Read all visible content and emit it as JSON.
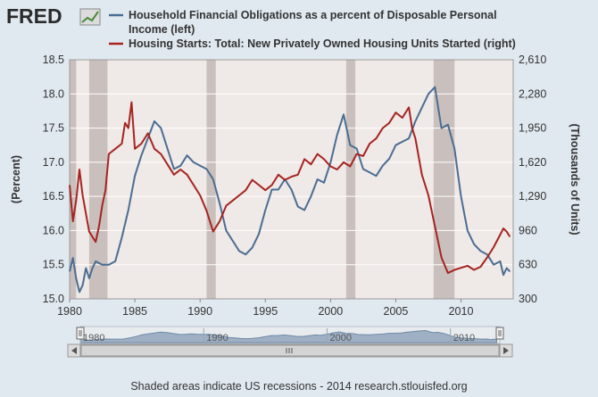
{
  "header": {
    "brand": "FRED",
    "logo_icon": "fred-chart-icon"
  },
  "colors": {
    "page_bg": "#e1e9f0",
    "plot_bg": "#efe9e7",
    "recession": "#c9bfbc",
    "series_left": "#4a6d93",
    "series_right": "#a52420",
    "axis_text": "#333333"
  },
  "chart_data": {
    "type": "line",
    "title": "",
    "xlabel": "",
    "left_axis": {
      "label": "(Percent)",
      "range": [
        15.0,
        18.5
      ],
      "ticks": [
        15.0,
        15.5,
        16.0,
        16.5,
        17.0,
        17.5,
        18.0,
        18.5
      ],
      "tick_labels": [
        "15.0",
        "15.5",
        "16.0",
        "16.5",
        "17.0",
        "17.5",
        "18.0",
        "18.5"
      ]
    },
    "right_axis": {
      "label": "(Thousands of Units)",
      "range": [
        300,
        2610
      ],
      "ticks": [
        300,
        630,
        960,
        1290,
        1620,
        1950,
        2280,
        2610
      ],
      "tick_labels": [
        "300",
        "630",
        "960",
        "1,290",
        "1,620",
        "1,950",
        "2,280",
        "2,610"
      ]
    },
    "x_axis": {
      "range": [
        1980.0,
        2014.0
      ],
      "ticks": [
        1980,
        1985,
        1990,
        1995,
        2000,
        2005,
        2010
      ],
      "tick_labels": [
        "1980",
        "1985",
        "1990",
        "1995",
        "2000",
        "2005",
        "2010"
      ]
    },
    "recessions": [
      [
        1980.0,
        1980.5
      ],
      [
        1981.5,
        1982.9
      ],
      [
        1990.5,
        1991.2
      ],
      [
        2001.2,
        2001.9
      ],
      [
        2007.9,
        2009.5
      ]
    ],
    "series": [
      {
        "name": "Household Financial Obligations as a percent of Disposable Personal Income (left)",
        "axis": "left",
        "x": [
          1980.0,
          1980.25,
          1980.5,
          1980.75,
          1981.0,
          1981.25,
          1981.5,
          1981.75,
          1982.0,
          1982.5,
          1983.0,
          1983.5,
          1984.0,
          1984.5,
          1985.0,
          1985.5,
          1986.0,
          1986.5,
          1987.0,
          1987.5,
          1988.0,
          1988.5,
          1989.0,
          1989.5,
          1990.0,
          1990.5,
          1991.0,
          1991.5,
          1992.0,
          1992.5,
          1993.0,
          1993.5,
          1994.0,
          1994.5,
          1995.0,
          1995.5,
          1996.0,
          1996.5,
          1997.0,
          1997.5,
          1998.0,
          1998.5,
          1999.0,
          1999.5,
          2000.0,
          2000.5,
          2001.0,
          2001.5,
          2002.0,
          2002.5,
          2003.0,
          2003.5,
          2004.0,
          2004.5,
          2005.0,
          2005.5,
          2006.0,
          2006.5,
          2007.0,
          2007.5,
          2008.0,
          2008.5,
          2009.0,
          2009.5,
          2010.0,
          2010.5,
          2011.0,
          2011.5,
          2012.0,
          2012.5,
          2013.0,
          2013.25,
          2013.5,
          2013.75
        ],
        "values": [
          15.4,
          15.6,
          15.3,
          15.1,
          15.2,
          15.45,
          15.3,
          15.45,
          15.55,
          15.5,
          15.5,
          15.55,
          15.9,
          16.3,
          16.8,
          17.1,
          17.35,
          17.6,
          17.5,
          17.2,
          16.9,
          16.95,
          17.1,
          17.0,
          16.95,
          16.9,
          16.75,
          16.4,
          16.0,
          15.85,
          15.7,
          15.65,
          15.75,
          15.95,
          16.3,
          16.6,
          16.6,
          16.75,
          16.6,
          16.35,
          16.3,
          16.5,
          16.75,
          16.7,
          17.0,
          17.4,
          17.7,
          17.25,
          17.2,
          16.9,
          16.85,
          16.8,
          16.95,
          17.05,
          17.25,
          17.3,
          17.35,
          17.6,
          17.8,
          18.0,
          18.1,
          17.5,
          17.55,
          17.2,
          16.5,
          16.0,
          15.8,
          15.7,
          15.65,
          15.5,
          15.55,
          15.35,
          15.45,
          15.4
        ]
      },
      {
        "name": "Housing Starts: Total: New Privately Owned Housing Units Started (right)",
        "axis": "right",
        "x": [
          1980.0,
          1980.25,
          1980.5,
          1980.75,
          1981.0,
          1981.5,
          1982.0,
          1982.25,
          1982.5,
          1982.75,
          1983.0,
          1983.5,
          1984.0,
          1984.25,
          1984.5,
          1984.75,
          1985.0,
          1985.5,
          1986.0,
          1986.5,
          1987.0,
          1987.5,
          1988.0,
          1988.5,
          1989.0,
          1989.5,
          1990.0,
          1990.5,
          1991.0,
          1991.5,
          1992.0,
          1992.5,
          1993.0,
          1993.5,
          1994.0,
          1994.5,
          1995.0,
          1995.5,
          1996.0,
          1996.5,
          1997.0,
          1997.5,
          1998.0,
          1998.5,
          1999.0,
          1999.5,
          2000.0,
          2000.5,
          2001.0,
          2001.5,
          2002.0,
          2002.5,
          2003.0,
          2003.5,
          2004.0,
          2004.5,
          2005.0,
          2005.5,
          2006.0,
          2006.25,
          2006.5,
          2007.0,
          2007.5,
          2008.0,
          2008.5,
          2009.0,
          2009.5,
          2010.0,
          2010.5,
          2011.0,
          2011.5,
          2012.0,
          2012.5,
          2013.0,
          2013.25,
          2013.5,
          2013.75
        ],
        "values": [
          1400,
          1050,
          1250,
          1550,
          1300,
          950,
          850,
          1000,
          1200,
          1350,
          1700,
          1750,
          1800,
          2000,
          1950,
          2200,
          1750,
          1800,
          1900,
          1750,
          1700,
          1600,
          1500,
          1550,
          1500,
          1400,
          1300,
          1150,
          950,
          1050,
          1200,
          1250,
          1300,
          1350,
          1450,
          1400,
          1350,
          1400,
          1500,
          1450,
          1480,
          1500,
          1650,
          1600,
          1700,
          1650,
          1580,
          1550,
          1620,
          1580,
          1700,
          1680,
          1800,
          1850,
          1950,
          2000,
          2100,
          2050,
          2150,
          1950,
          1850,
          1500,
          1300,
          1000,
          700,
          550,
          580,
          600,
          620,
          580,
          610,
          700,
          800,
          920,
          980,
          950,
          900
        ]
      }
    ],
    "legend": {
      "placement": "top"
    }
  },
  "navigator": {
    "tick_labels": [
      "1980",
      "1990",
      "2000",
      "2010"
    ],
    "scroll_icon": "scrollbar-grip-icon",
    "left_arrow_icon": "arrow-left-icon",
    "right_arrow_icon": "arrow-right-icon"
  },
  "footer": {
    "text": "Shaded areas indicate US recessions - 2014 research.stlouisfed.org"
  }
}
